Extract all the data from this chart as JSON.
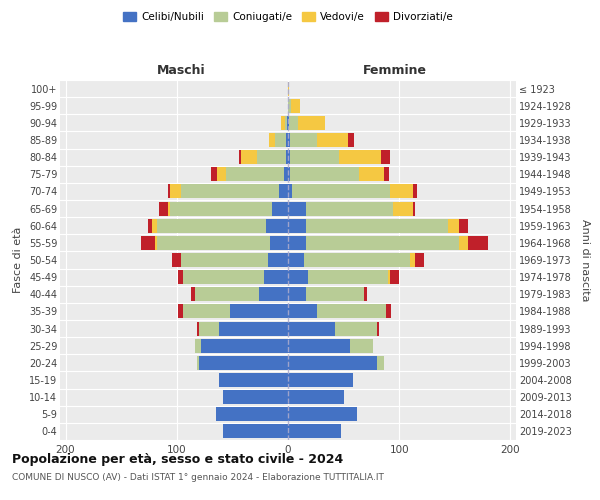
{
  "age_groups": [
    "0-4",
    "5-9",
    "10-14",
    "15-19",
    "20-24",
    "25-29",
    "30-34",
    "35-39",
    "40-44",
    "45-49",
    "50-54",
    "55-59",
    "60-64",
    "65-69",
    "70-74",
    "75-79",
    "80-84",
    "85-89",
    "90-94",
    "95-99",
    "100+"
  ],
  "birth_years": [
    "2019-2023",
    "2014-2018",
    "2009-2013",
    "2004-2008",
    "1999-2003",
    "1994-1998",
    "1989-1993",
    "1984-1988",
    "1979-1983",
    "1974-1978",
    "1969-1973",
    "1964-1968",
    "1959-1963",
    "1954-1958",
    "1949-1953",
    "1944-1948",
    "1939-1943",
    "1934-1938",
    "1929-1933",
    "1924-1928",
    "≤ 1923"
  ],
  "colors": {
    "celibi": "#4472c4",
    "coniugati": "#b8cc96",
    "vedovi": "#f5c842",
    "divorziati": "#c0202a"
  },
  "maschi": {
    "celibi": [
      58,
      65,
      58,
      62,
      80,
      78,
      62,
      52,
      26,
      22,
      18,
      16,
      20,
      14,
      8,
      4,
      2,
      2,
      1,
      0,
      0
    ],
    "coniugati": [
      0,
      0,
      0,
      0,
      2,
      6,
      18,
      42,
      58,
      72,
      78,
      102,
      98,
      92,
      88,
      52,
      26,
      10,
      2,
      0,
      0
    ],
    "vedovi": [
      0,
      0,
      0,
      0,
      0,
      0,
      0,
      0,
      0,
      0,
      0,
      2,
      4,
      2,
      10,
      8,
      14,
      5,
      3,
      0,
      0
    ],
    "divorziati": [
      0,
      0,
      0,
      0,
      0,
      0,
      2,
      5,
      3,
      5,
      8,
      12,
      4,
      8,
      2,
      5,
      2,
      0,
      0,
      0,
      0
    ]
  },
  "femmine": {
    "celibi": [
      48,
      62,
      50,
      58,
      80,
      56,
      42,
      26,
      16,
      18,
      14,
      16,
      16,
      16,
      4,
      2,
      2,
      2,
      1,
      0,
      0
    ],
    "coniugati": [
      0,
      0,
      0,
      0,
      6,
      20,
      38,
      62,
      52,
      72,
      96,
      138,
      128,
      78,
      88,
      62,
      44,
      24,
      8,
      3,
      0
    ],
    "vedovi": [
      0,
      0,
      0,
      0,
      0,
      0,
      0,
      0,
      0,
      2,
      4,
      8,
      10,
      18,
      20,
      22,
      38,
      28,
      24,
      8,
      1
    ],
    "divorziati": [
      0,
      0,
      0,
      0,
      0,
      0,
      2,
      5,
      3,
      8,
      8,
      18,
      8,
      2,
      4,
      5,
      8,
      5,
      0,
      0,
      0
    ]
  },
  "xlim": 205,
  "title": "Popolazione per età, sesso e stato civile - 2024",
  "subtitle": "COMUNE DI NUSCO (AV) - Dati ISTAT 1° gennaio 2024 - Elaborazione TUTTITALIA.IT",
  "xlabel_left": "Maschi",
  "xlabel_right": "Femmine",
  "ylabel": "Fasce di età",
  "ylabel_right": "Anni di nascita",
  "legend_labels": [
    "Celibi/Nubili",
    "Coniugati/e",
    "Vedovi/e",
    "Divorziati/e"
  ],
  "bg_color": "#ffffff",
  "plot_bg_color": "#ebebeb",
  "grid_color": "#ffffff"
}
